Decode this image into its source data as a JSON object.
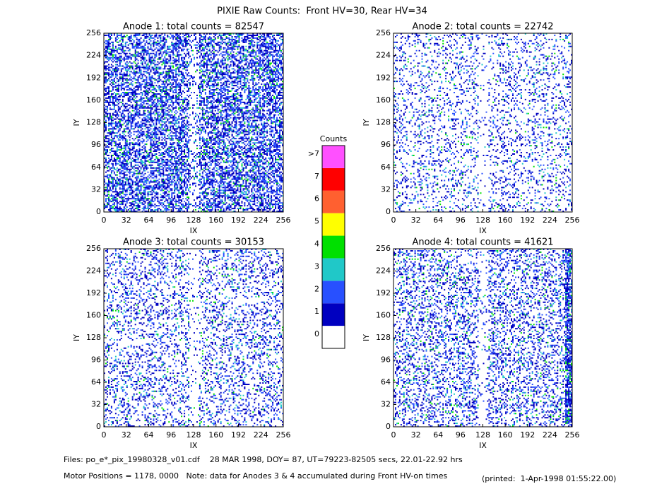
{
  "title": "PIXIE Raw Counts:  Front HV=30, Rear HV=34",
  "chart_data": [
    {
      "type": "heatmap",
      "title": "Anode 1: total counts = 82547",
      "xlabel": "IX",
      "ylabel": "IY",
      "xlim": [
        0,
        256
      ],
      "ylim": [
        0,
        256
      ],
      "xticks": [
        0,
        32,
        64,
        96,
        128,
        160,
        192,
        224,
        256
      ],
      "yticks": [
        0,
        32,
        64,
        96,
        128,
        160,
        192,
        224,
        256
      ]
    },
    {
      "type": "heatmap",
      "title": "Anode 2: total counts = 22742",
      "xlabel": "IX",
      "ylabel": "IY",
      "xlim": [
        0,
        256
      ],
      "ylim": [
        0,
        256
      ],
      "xticks": [
        0,
        32,
        64,
        96,
        128,
        160,
        192,
        224,
        256
      ],
      "yticks": [
        0,
        32,
        64,
        96,
        128,
        160,
        192,
        224,
        256
      ]
    },
    {
      "type": "heatmap",
      "title": "Anode 3: total counts = 30153",
      "xlabel": "IX",
      "ylabel": "IY",
      "xlim": [
        0,
        256
      ],
      "ylim": [
        0,
        256
      ],
      "xticks": [
        0,
        32,
        64,
        96,
        128,
        160,
        192,
        224,
        256
      ],
      "yticks": [
        0,
        32,
        64,
        96,
        128,
        160,
        192,
        224,
        256
      ]
    },
    {
      "type": "heatmap",
      "title": "Anode 4: total counts = 41621",
      "xlabel": "IX",
      "ylabel": "IY",
      "xlim": [
        0,
        256
      ],
      "ylim": [
        0,
        256
      ],
      "xticks": [
        0,
        32,
        64,
        96,
        128,
        160,
        192,
        224,
        256
      ],
      "yticks": [
        0,
        32,
        64,
        96,
        128,
        160,
        192,
        224,
        256
      ]
    }
  ],
  "colorbar": {
    "title": "Counts",
    "categories": [
      "0",
      "1",
      "2",
      "3",
      "4",
      "5",
      "6",
      "7",
      ">7"
    ],
    "colors": [
      "#ffffff",
      "#0000c0",
      "#2850ff",
      "#20c8c8",
      "#00e000",
      "#ffff00",
      "#ff6030",
      "#ff0000",
      "#ff50ff"
    ]
  },
  "footer": {
    "files": "Files: po_e*_pix_19980328_v01.cdf    28 MAR 1998, DOY= 87, UT=79223-82505 secs, 22.01-22.92 hrs",
    "motor": "Motor Positions = 1178, 0000   Note: data for Anodes 3 & 4 accumulated during Front HV-on times",
    "printed": "(printed:  1-Apr-1998 01:55:22.00)"
  }
}
